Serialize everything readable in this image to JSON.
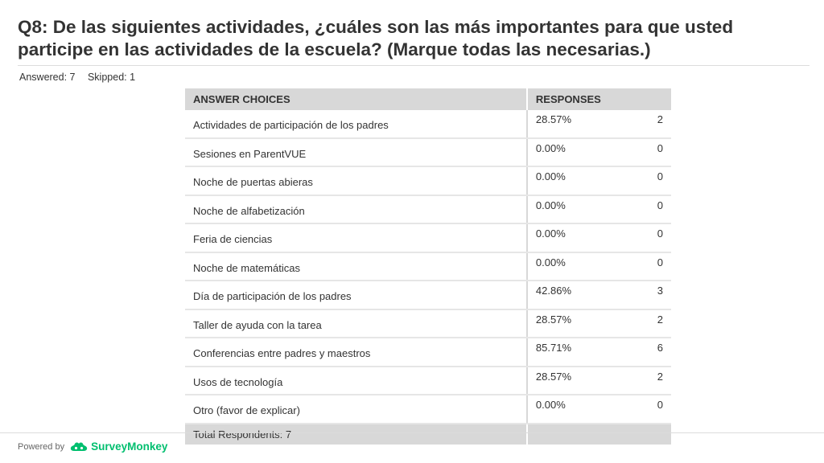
{
  "question": {
    "title": "Q8: De las siguientes actividades, ¿cuáles son las más importantes para que usted participe en las actividades de la escuela? (Marque todas las necesarias.)",
    "answered": "Answered: 7",
    "skipped": "Skipped: 1"
  },
  "table": {
    "headers": {
      "choices": "ANSWER CHOICES",
      "responses": "RESPONSES"
    },
    "rows": [
      {
        "choice": "Actividades de participación de los padres",
        "percent": "28.57%",
        "count": "2"
      },
      {
        "choice": "Sesiones en ParentVUE",
        "percent": "0.00%",
        "count": "0"
      },
      {
        "choice": "Noche de puertas abieras",
        "percent": "0.00%",
        "count": "0"
      },
      {
        "choice": "Noche de alfabetización",
        "percent": "0.00%",
        "count": "0"
      },
      {
        "choice": "Feria de ciencias",
        "percent": "0.00%",
        "count": "0"
      },
      {
        "choice": "Noche de matemáticas",
        "percent": "0.00%",
        "count": "0"
      },
      {
        "choice": "Día de participación de los padres",
        "percent": "42.86%",
        "count": "3"
      },
      {
        "choice": "Taller de ayuda con la tarea",
        "percent": "28.57%",
        "count": "2"
      },
      {
        "choice": "Conferencias entre padres y maestros",
        "percent": "85.71%",
        "count": "6"
      },
      {
        "choice": "Usos de tecnología",
        "percent": "28.57%",
        "count": "2"
      },
      {
        "choice": "Otro (favor de explicar)",
        "percent": "0.00%",
        "count": "0"
      }
    ],
    "total": "Total Respondents: 7"
  },
  "footer": {
    "powered_by": "Powered by",
    "brand": "SurveyMonkey",
    "brand_color": "#00bf6f"
  }
}
